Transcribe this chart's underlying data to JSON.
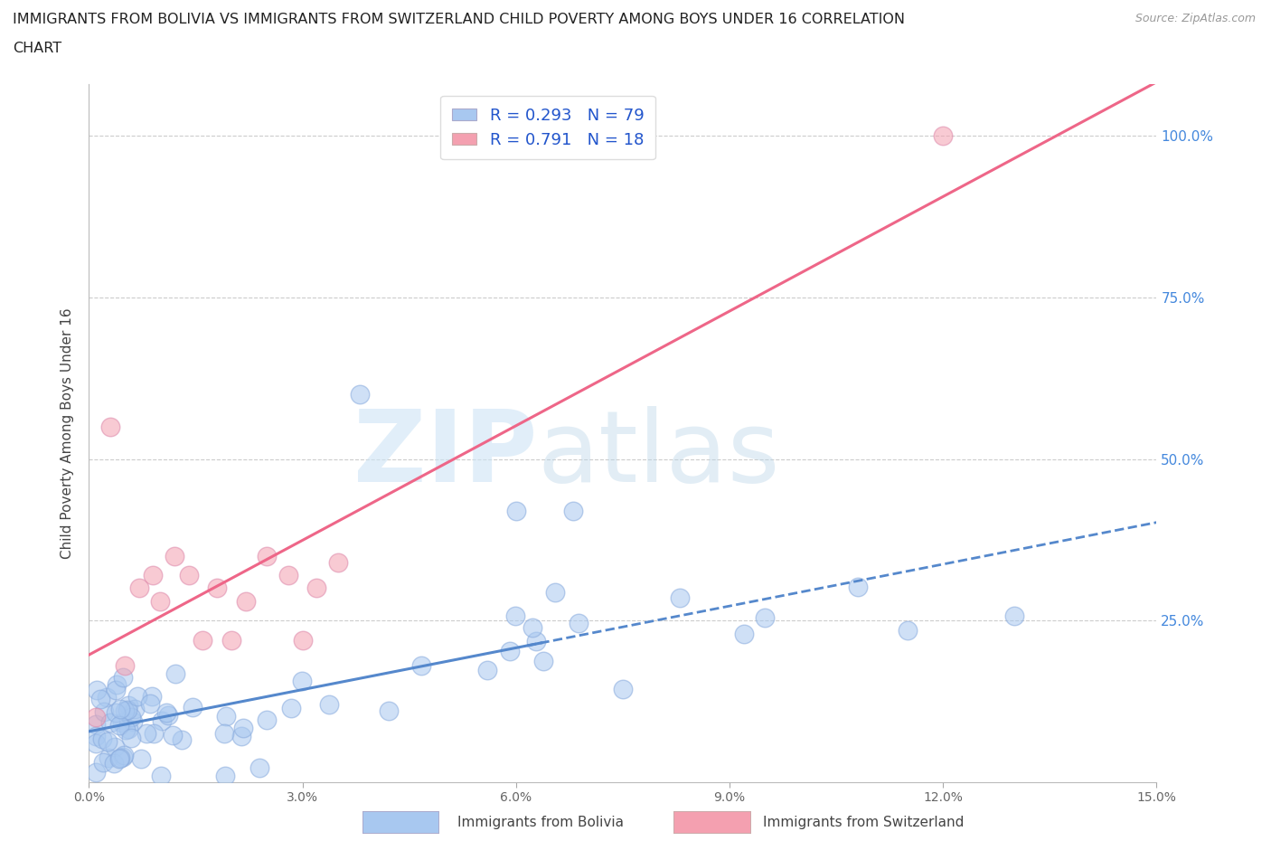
{
  "title_line1": "IMMIGRANTS FROM BOLIVIA VS IMMIGRANTS FROM SWITZERLAND CHILD POVERTY AMONG BOYS UNDER 16 CORRELATION",
  "title_line2": "CHART",
  "source_text": "Source: ZipAtlas.com",
  "ylabel": "Child Poverty Among Boys Under 16",
  "xlim": [
    0.0,
    0.15
  ],
  "ylim": [
    0.0,
    1.08
  ],
  "xticks": [
    0.0,
    0.03,
    0.06,
    0.09,
    0.12,
    0.15
  ],
  "xticklabels": [
    "0.0%",
    "3.0%",
    "6.0%",
    "9.0%",
    "12.0%",
    "15.0%"
  ],
  "yticks": [
    0.0,
    0.25,
    0.5,
    0.75,
    1.0
  ],
  "yticklabels_right": [
    "",
    "25.0%",
    "50.0%",
    "75.0%",
    "100.0%"
  ],
  "bolivia_color": "#a8c8f0",
  "switzerland_color": "#f4a0b0",
  "bolivia_line_color": "#5588cc",
  "switzerland_line_color": "#ee6688",
  "bolivia_R": 0.293,
  "bolivia_N": 79,
  "switzerland_R": 0.791,
  "switzerland_N": 18,
  "watermark_zip": "ZIP",
  "watermark_atlas": "atlas",
  "background_color": "#ffffff",
  "grid_color": "#cccccc",
  "tick_color": "#4488dd",
  "legend_text_color": "#2255cc"
}
